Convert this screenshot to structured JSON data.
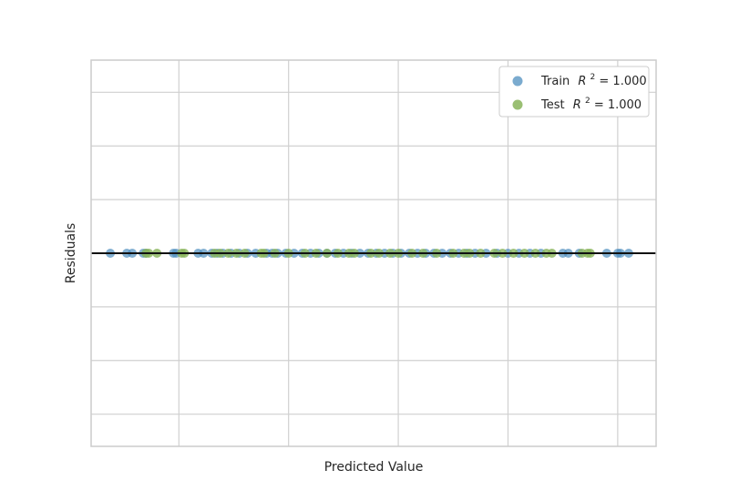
{
  "chart_data": {
    "type": "scatter",
    "title": "",
    "xlabel": "Predicted Value",
    "ylabel": "Residuals",
    "xlim": [
      -3.6,
      6.7
    ],
    "ylim": [
      -3.6,
      3.6
    ],
    "grid": true,
    "legend_position": "top-right",
    "zero_line": 0,
    "colors": {
      "train": "#4f8fbf",
      "test": "#88b45a",
      "zero_line": "#111111"
    },
    "series": [
      {
        "name": "Train",
        "name_super": "2",
        "label_suffix": " = 1.000",
        "x": [
          -3.25,
          -2.95,
          -2.85,
          -2.65,
          -2.6,
          -2.1,
          -2.05,
          -1.65,
          -1.55,
          -1.4,
          -1.3,
          -1.2,
          -1.05,
          -0.9,
          -0.75,
          -0.6,
          -0.4,
          -0.3,
          -0.2,
          -0.05,
          0.1,
          0.25,
          0.4,
          0.55,
          0.7,
          0.85,
          1.0,
          1.15,
          1.3,
          1.45,
          1.6,
          1.75,
          1.9,
          2.05,
          2.2,
          2.35,
          2.5,
          2.65,
          2.8,
          2.95,
          3.1,
          3.25,
          3.4,
          3.6,
          3.8,
          4.0,
          4.2,
          4.4,
          4.6,
          5.0,
          5.1,
          5.3,
          5.8,
          6.0,
          6.05,
          6.2
        ],
        "y": [
          0,
          0,
          0,
          0,
          0,
          0,
          0,
          0,
          0,
          0,
          0,
          0,
          0,
          0,
          0,
          0,
          0,
          0,
          0,
          0,
          0,
          0,
          0,
          0,
          0,
          0,
          0,
          0,
          0,
          0,
          0,
          0,
          0,
          0,
          0,
          0,
          0,
          0,
          0,
          0,
          0,
          0,
          0,
          0,
          0,
          0,
          0,
          0,
          0,
          0,
          0,
          0,
          0,
          0,
          0,
          0
        ]
      },
      {
        "name": "Test",
        "name_super": "2",
        "label_suffix": " = 1.000",
        "x": [
          -2.6,
          -2.55,
          -2.4,
          -1.95,
          -1.9,
          -1.35,
          -1.25,
          -1.1,
          -0.95,
          -0.8,
          -0.5,
          -0.45,
          -0.25,
          0.0,
          0.3,
          0.5,
          0.7,
          0.9,
          1.1,
          1.2,
          1.5,
          1.65,
          1.85,
          2.0,
          2.25,
          2.45,
          2.7,
          3.0,
          3.2,
          3.3,
          3.5,
          3.75,
          3.9,
          4.1,
          4.3,
          4.5,
          4.7,
          4.8,
          5.35,
          5.45,
          5.5
        ],
        "y": [
          0,
          0,
          0,
          0,
          0,
          0,
          0,
          0,
          0,
          0,
          0,
          0,
          0,
          0,
          0,
          0,
          0,
          0,
          0,
          0,
          0,
          0,
          0,
          0,
          0,
          0,
          0,
          0,
          0,
          0,
          0,
          0,
          0,
          0,
          0,
          0,
          0,
          0,
          0,
          0,
          0
        ]
      }
    ]
  }
}
